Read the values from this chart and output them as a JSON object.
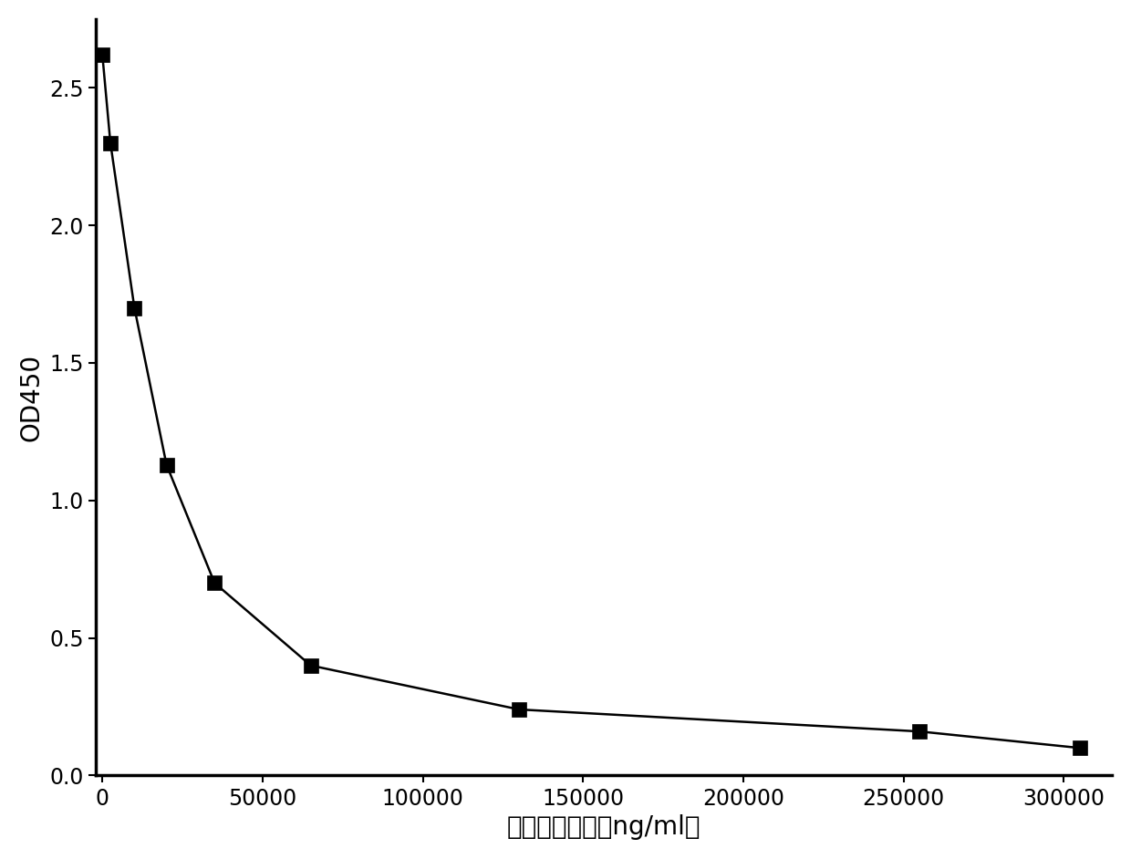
{
  "x": [
    0,
    2500,
    10000,
    20000,
    35000,
    65000,
    130000,
    255000,
    305000
  ],
  "y": [
    2.62,
    2.3,
    1.7,
    1.13,
    0.7,
    0.4,
    0.24,
    0.16,
    0.1
  ],
  "xlabel": "甘胆酸效价图（ng/ml）",
  "ylabel": "OD450",
  "xlim": [
    -2000,
    315000
  ],
  "ylim": [
    0.0,
    2.75
  ],
  "xticks": [
    0,
    50000,
    100000,
    150000,
    200000,
    250000,
    300000
  ],
  "yticks": [
    0.0,
    0.5,
    1.0,
    1.5,
    2.0,
    2.5
  ],
  "line_color": "#000000",
  "marker_color": "#000000",
  "background_color": "#ffffff",
  "axis_color": "#000000",
  "fontsize_label": 20,
  "fontsize_tick": 17,
  "linewidth": 1.8,
  "marker_size": 11
}
